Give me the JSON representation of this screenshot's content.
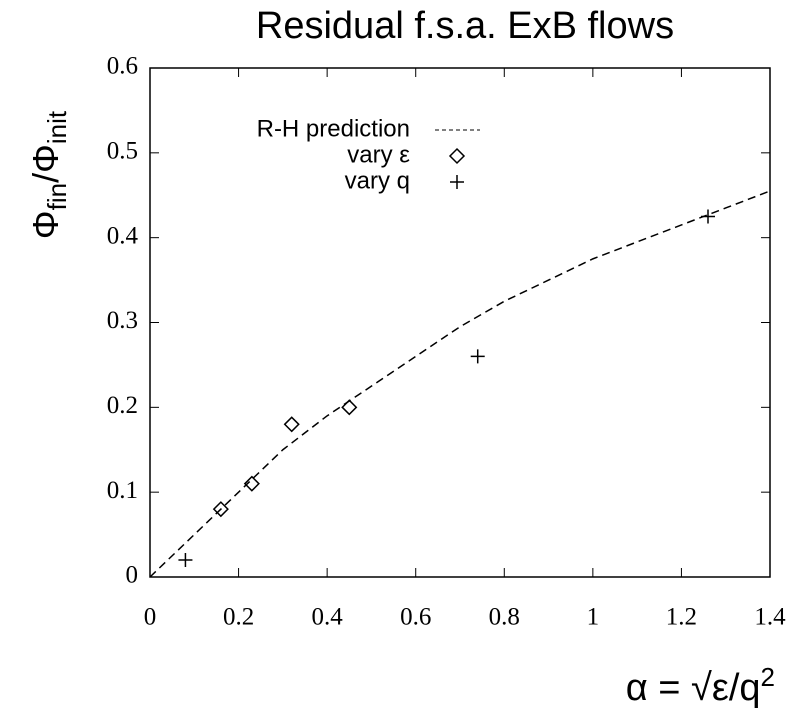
{
  "chart_data": {
    "type": "line-scatter",
    "title": "Residual f.s.a. ExB flows",
    "ylabel_parts": [
      "Φ",
      "fin",
      "/Φ",
      "init"
    ],
    "xlabel_parts": [
      "α = √ε/q",
      "2"
    ],
    "xlim": [
      0,
      1.4
    ],
    "ylim": [
      0,
      0.6
    ],
    "xticks": [
      0,
      0.2,
      0.4,
      0.6,
      0.8,
      1,
      1.2,
      1.4
    ],
    "yticks": [
      0,
      0.1,
      0.2,
      0.3,
      0.4,
      0.5,
      0.6
    ],
    "legend": "top-left",
    "series": [
      {
        "name": "R-H prediction",
        "kind": "dashed-line",
        "color": "#000000",
        "x": [
          0,
          0.1,
          0.2,
          0.3,
          0.4,
          0.5,
          0.6,
          0.7,
          0.8,
          0.9,
          1.0,
          1.1,
          1.2,
          1.3,
          1.4
        ],
        "values": [
          0,
          0.05,
          0.1,
          0.15,
          0.19,
          0.225,
          0.26,
          0.295,
          0.325,
          0.35,
          0.375,
          0.395,
          0.415,
          0.435,
          0.455
        ]
      },
      {
        "name": "vary ε",
        "kind": "diamond",
        "color": "#000000",
        "x": [
          0.16,
          0.23,
          0.32,
          0.45
        ],
        "values": [
          0.08,
          0.11,
          0.18,
          0.2
        ]
      },
      {
        "name": "vary q",
        "kind": "plus",
        "color": "#000000",
        "x": [
          0.08,
          0.74,
          1.26
        ],
        "values": [
          0.02,
          0.26,
          0.425
        ]
      }
    ]
  }
}
